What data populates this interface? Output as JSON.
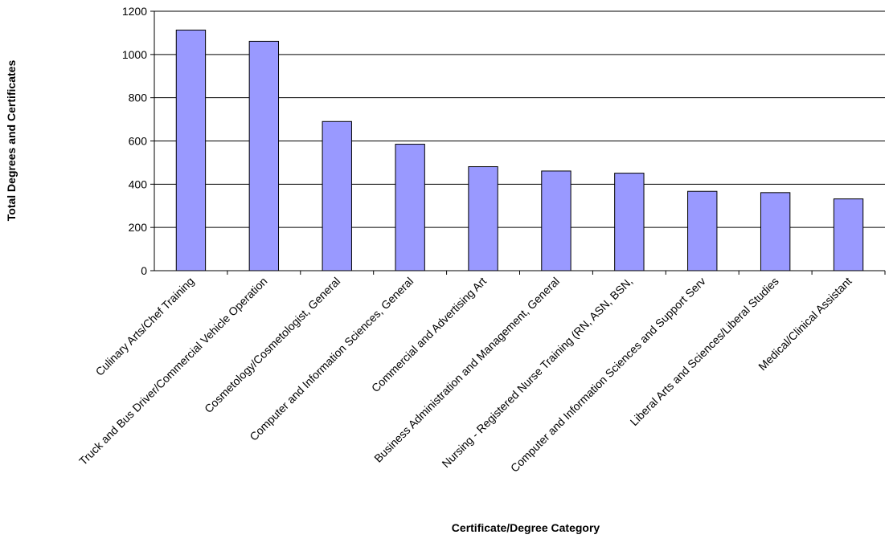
{
  "colors": {
    "bar_fill": "#9999ff",
    "bar_stroke": "#000000",
    "grid": "#000000",
    "background": "#ffffff"
  },
  "chart_data": {
    "type": "bar",
    "title": "",
    "xlabel": "Certificate/Degree Category",
    "ylabel": "Total Degrees and Certificates",
    "ylim": [
      0,
      1200
    ],
    "yticks": [
      0,
      200,
      400,
      600,
      800,
      1000,
      1200
    ],
    "grid": true,
    "legend": "none",
    "categories": [
      "Culinary Arts/Chef Training",
      "Truck and Bus Driver/Commercial Vehicle Operation",
      "Cosmetology/Cosmetologist, General",
      "Computer and Information Sciences, General",
      "Commercial and Advertising Art",
      "Business Administration and Management, General",
      "Nursing - Registered Nurse Training (RN, ASN, BSN,",
      "Computer and Information Sciences and Support Serv",
      "Liberal Arts and Sciences/Liberal Studies",
      "Medical/Clinical Assistant"
    ],
    "values": [
      1113,
      1061,
      690,
      585,
      481,
      461,
      451,
      367,
      361,
      332
    ]
  }
}
